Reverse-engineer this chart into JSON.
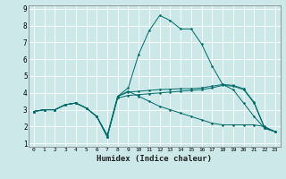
{
  "xlabel": "Humidex (Indice chaleur)",
  "background_color": "#cce8e8",
  "grid_color": "#ffffff",
  "line_color": "#006b6b",
  "xlim": [
    -0.5,
    23.5
  ],
  "ylim": [
    0.8,
    9.2
  ],
  "xtick_vals": [
    0,
    1,
    2,
    3,
    4,
    5,
    6,
    7,
    8,
    9,
    10,
    11,
    12,
    13,
    14,
    15,
    16,
    17,
    18,
    19,
    20,
    21,
    22,
    23
  ],
  "xtick_labels": [
    "0",
    "1",
    "2",
    "3",
    "4",
    "5",
    "6",
    "7",
    "8",
    "9",
    "10",
    "11",
    "12",
    "13",
    "14",
    "15",
    "16",
    "17",
    "18",
    "19",
    "20",
    "21",
    "22",
    "23"
  ],
  "ytick_vals": [
    1,
    2,
    3,
    4,
    5,
    6,
    7,
    8,
    9
  ],
  "ytick_labels": [
    "1",
    "2",
    "3",
    "4",
    "5",
    "6",
    "7",
    "8",
    "9"
  ],
  "series": [
    {
      "x": [
        0,
        1,
        2,
        3,
        4,
        5,
        6,
        7,
        8,
        9,
        10,
        11,
        12,
        13,
        14,
        15,
        16,
        17,
        18,
        19,
        20,
        21,
        22,
        23
      ],
      "y": [
        2.9,
        3.0,
        3.0,
        3.3,
        3.4,
        3.1,
        2.6,
        1.5,
        3.8,
        4.3,
        6.3,
        7.7,
        8.6,
        8.3,
        7.8,
        7.8,
        6.9,
        5.6,
        4.5,
        4.2,
        3.4,
        2.6,
        1.9,
        1.7
      ]
    },
    {
      "x": [
        0,
        1,
        2,
        3,
        4,
        5,
        6,
        7,
        8,
        9,
        10,
        11,
        12,
        13,
        14,
        15,
        16,
        17,
        18,
        19,
        20,
        21,
        22,
        23
      ],
      "y": [
        2.9,
        3.0,
        3.0,
        3.3,
        3.4,
        3.1,
        2.6,
        1.4,
        3.7,
        3.85,
        3.9,
        3.95,
        4.0,
        4.05,
        4.1,
        4.15,
        4.2,
        4.3,
        4.45,
        4.4,
        4.2,
        3.4,
        1.9,
        1.7
      ]
    },
    {
      "x": [
        0,
        1,
        2,
        3,
        4,
        5,
        6,
        7,
        8,
        9,
        10,
        11,
        12,
        13,
        14,
        15,
        16,
        17,
        18,
        19,
        20,
        21,
        22,
        23
      ],
      "y": [
        2.9,
        3.0,
        3.0,
        3.3,
        3.4,
        3.1,
        2.6,
        1.4,
        3.8,
        4.05,
        4.1,
        4.15,
        4.2,
        4.22,
        4.25,
        4.25,
        4.3,
        4.4,
        4.5,
        4.45,
        4.25,
        3.45,
        1.95,
        1.7
      ]
    },
    {
      "x": [
        0,
        1,
        2,
        3,
        4,
        5,
        6,
        7,
        8,
        9,
        10,
        11,
        12,
        13,
        14,
        15,
        16,
        17,
        18,
        19,
        20,
        21,
        22,
        23
      ],
      "y": [
        2.9,
        3.0,
        3.0,
        3.3,
        3.4,
        3.1,
        2.6,
        1.4,
        3.8,
        4.1,
        3.8,
        3.5,
        3.2,
        3.0,
        2.8,
        2.6,
        2.4,
        2.2,
        2.1,
        2.1,
        2.1,
        2.1,
        2.0,
        1.7
      ]
    }
  ]
}
